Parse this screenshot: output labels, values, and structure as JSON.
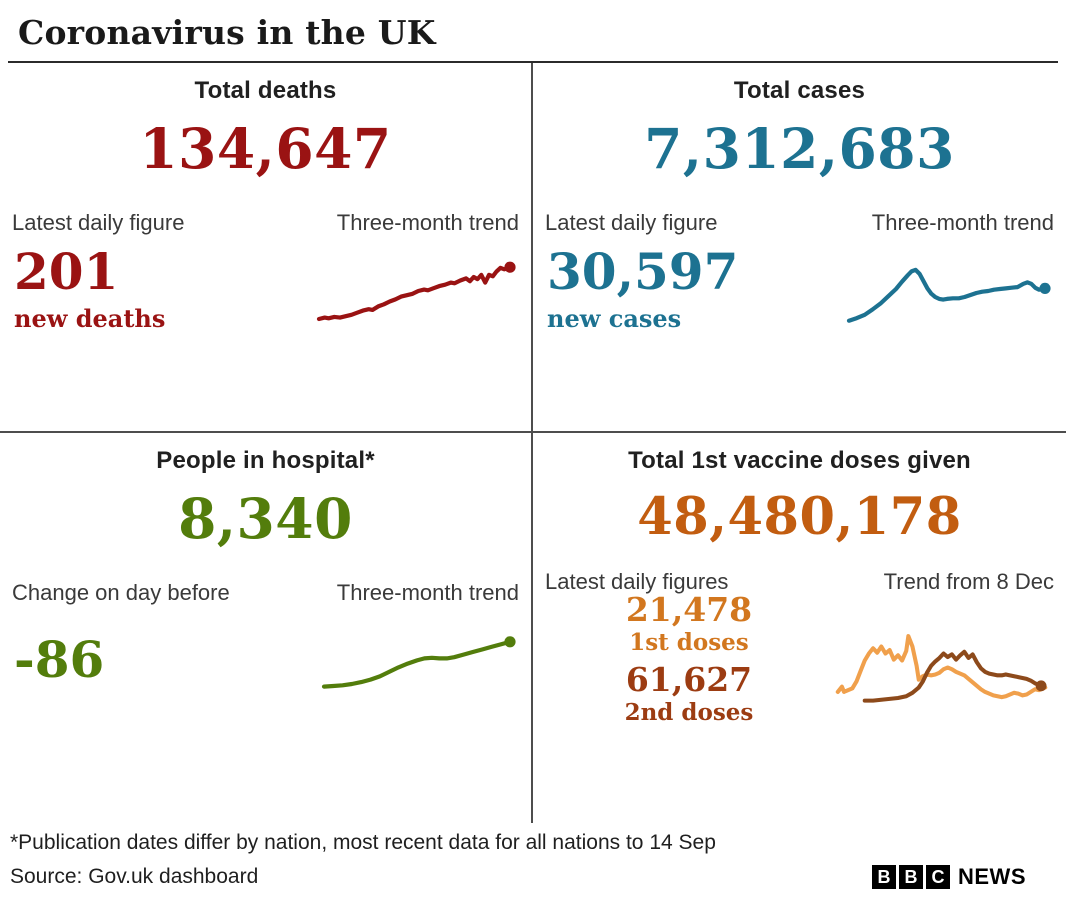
{
  "header": {
    "title": "Coronavirus in the UK"
  },
  "panels": {
    "deaths": {
      "title": "Total deaths",
      "total": "134,647",
      "left_label": "Latest daily figure",
      "right_label": "Three-month trend",
      "daily_value": "201",
      "daily_caption": "new deaths",
      "color": "#9a1313"
    },
    "cases": {
      "title": "Total cases",
      "total": "7,312,683",
      "left_label": "Latest daily figure",
      "right_label": "Three-month trend",
      "daily_value": "30,597",
      "daily_caption": "new cases",
      "color": "#1d7291"
    },
    "hospital": {
      "title": "People in hospital*",
      "total": "8,340",
      "left_label": "Change on day before",
      "right_label": "Three-month trend",
      "daily_value": "-86",
      "color": "#537d0c"
    },
    "vaccines": {
      "title": "Total 1st vaccine doses given",
      "total": "48,480,178",
      "left_label": "Latest daily figures",
      "right_label": "Trend from 8 Dec",
      "first_doses_value": "21,478",
      "first_doses_caption": "1st doses",
      "second_doses_value": "61,627",
      "second_doses_caption": "2nd doses",
      "total_color": "#c25d10",
      "first_color": "#d2771f",
      "second_color": "#9c3c12"
    }
  },
  "footer": {
    "footnote": "*Publication dates differ by nation, most recent data for all nations to 14 Sep",
    "source": "Source: Gov.uk dashboard",
    "logo_letters": [
      "B",
      "B",
      "C"
    ],
    "logo_text": "NEWS"
  },
  "chart_data": [
    {
      "name": "deaths-three-month-trend",
      "type": "line",
      "title": "Three-month trend",
      "note": "unlabeled sparkline; values are relative 0-100, rising steadily over three months with a sharp notch near the end and an end dot",
      "series": [
        {
          "name": "new deaths",
          "color": "#9a1313",
          "end_dot": true,
          "points": [
            [
              0,
              10
            ],
            [
              3,
              12
            ],
            [
              5,
              11
            ],
            [
              8,
              13
            ],
            [
              11,
              12
            ],
            [
              14,
              14
            ],
            [
              17,
              16
            ],
            [
              20,
              19
            ],
            [
              23,
              22
            ],
            [
              26,
              24
            ],
            [
              28,
              23
            ],
            [
              31,
              28
            ],
            [
              34,
              31
            ],
            [
              37,
              35
            ],
            [
              40,
              38
            ],
            [
              43,
              42
            ],
            [
              46,
              44
            ],
            [
              49,
              46
            ],
            [
              52,
              50
            ],
            [
              55,
              52
            ],
            [
              57,
              51
            ],
            [
              60,
              54
            ],
            [
              63,
              57
            ],
            [
              66,
              59
            ],
            [
              69,
              62
            ],
            [
              71,
              61
            ],
            [
              74,
              65
            ],
            [
              77,
              68
            ],
            [
              79,
              64
            ],
            [
              81,
              70
            ],
            [
              83,
              67
            ],
            [
              85,
              73
            ],
            [
              87,
              62
            ],
            [
              89,
              73
            ],
            [
              91,
              71
            ],
            [
              93,
              78
            ],
            [
              95,
              83
            ],
            [
              97,
              81
            ],
            [
              100,
              84
            ]
          ]
        }
      ]
    },
    {
      "name": "cases-three-month-trend",
      "type": "line",
      "title": "Three-month trend",
      "note": "unlabeled sparkline; steep rise to a peak about a third in, decline to a trough, then a gentle rise with a small hump before the end dot",
      "series": [
        {
          "name": "new cases",
          "color": "#1d7291",
          "end_dot": true,
          "points": [
            [
              0,
              8
            ],
            [
              4,
              12
            ],
            [
              8,
              17
            ],
            [
              12,
              25
            ],
            [
              16,
              34
            ],
            [
              20,
              45
            ],
            [
              24,
              56
            ],
            [
              27,
              67
            ],
            [
              30,
              77
            ],
            [
              32,
              83
            ],
            [
              34,
              85
            ],
            [
              36,
              79
            ],
            [
              38,
              68
            ],
            [
              40,
              57
            ],
            [
              42,
              49
            ],
            [
              44,
              44
            ],
            [
              46,
              41
            ],
            [
              48,
              40
            ],
            [
              50,
              41
            ],
            [
              53,
              42
            ],
            [
              56,
              42
            ],
            [
              59,
              44
            ],
            [
              62,
              47
            ],
            [
              65,
              50
            ],
            [
              68,
              52
            ],
            [
              71,
              53
            ],
            [
              74,
              55
            ],
            [
              77,
              56
            ],
            [
              80,
              57
            ],
            [
              83,
              58
            ],
            [
              86,
              59
            ],
            [
              89,
              64
            ],
            [
              91,
              66
            ],
            [
              93,
              64
            ],
            [
              95,
              58
            ],
            [
              97,
              55
            ],
            [
              100,
              57
            ]
          ]
        }
      ]
    },
    {
      "name": "hospital-three-month-trend",
      "type": "line",
      "title": "Three-month trend",
      "note": "unlabeled sparkline; smooth rise with a mid plateau then continued rise to an end dot",
      "series": [
        {
          "name": "people in hospital",
          "color": "#537d0c",
          "end_dot": true,
          "points": [
            [
              0,
              10
            ],
            [
              5,
              11
            ],
            [
              10,
              12
            ],
            [
              15,
              14
            ],
            [
              20,
              17
            ],
            [
              25,
              21
            ],
            [
              30,
              26
            ],
            [
              35,
              33
            ],
            [
              40,
              40
            ],
            [
              45,
              46
            ],
            [
              50,
              51
            ],
            [
              54,
              54
            ],
            [
              58,
              55
            ],
            [
              62,
              54
            ],
            [
              66,
              54
            ],
            [
              70,
              56
            ],
            [
              75,
              60
            ],
            [
              80,
              64
            ],
            [
              85,
              68
            ],
            [
              90,
              72
            ],
            [
              95,
              76
            ],
            [
              100,
              80
            ]
          ]
        }
      ]
    },
    {
      "name": "vaccine-doses-trend-from-8-dec",
      "type": "line",
      "title": "Trend from 8 Dec",
      "note": "unlabeled two-series sparkline; 1st doses (light orange) peak early then decline; 2nd doses (brown) rise later, peak mid, then decline with end dot",
      "series": [
        {
          "name": "1st doses",
          "color": "#f0a04c",
          "end_dot": false,
          "points": [
            [
              0,
              18
            ],
            [
              2,
              24
            ],
            [
              3,
              18
            ],
            [
              5,
              20
            ],
            [
              7,
              22
            ],
            [
              9,
              30
            ],
            [
              11,
              42
            ],
            [
              13,
              54
            ],
            [
              15,
              62
            ],
            [
              17,
              68
            ],
            [
              19,
              63
            ],
            [
              21,
              70
            ],
            [
              23,
              62
            ],
            [
              25,
              66
            ],
            [
              27,
              55
            ],
            [
              29,
              60
            ],
            [
              31,
              54
            ],
            [
              33,
              65
            ],
            [
              34,
              82
            ],
            [
              36,
              70
            ],
            [
              38,
              48
            ],
            [
              39,
              32
            ],
            [
              41,
              36
            ],
            [
              43,
              38
            ],
            [
              45,
              37
            ],
            [
              47,
              38
            ],
            [
              49,
              40
            ],
            [
              51,
              44
            ],
            [
              53,
              46
            ],
            [
              55,
              44
            ],
            [
              57,
              41
            ],
            [
              59,
              39
            ],
            [
              61,
              37
            ],
            [
              63,
              33
            ],
            [
              65,
              29
            ],
            [
              67,
              25
            ],
            [
              69,
              21
            ],
            [
              71,
              18
            ],
            [
              73,
              16
            ],
            [
              75,
              14
            ],
            [
              77,
              13
            ],
            [
              79,
              12
            ],
            [
              81,
              13
            ],
            [
              83,
              15
            ],
            [
              85,
              17
            ],
            [
              87,
              16
            ],
            [
              89,
              14
            ],
            [
              91,
              15
            ],
            [
              93,
              18
            ],
            [
              95,
              21
            ],
            [
              97,
              20
            ],
            [
              100,
              23
            ]
          ]
        },
        {
          "name": "2nd doses",
          "color": "#8d4a1b",
          "end_dot": true,
          "points": [
            [
              13,
              8
            ],
            [
              17,
              8
            ],
            [
              21,
              9
            ],
            [
              25,
              10
            ],
            [
              29,
              11
            ],
            [
              33,
              13
            ],
            [
              36,
              17
            ],
            [
              39,
              23
            ],
            [
              41,
              30
            ],
            [
              43,
              40
            ],
            [
              45,
              48
            ],
            [
              47,
              53
            ],
            [
              49,
              57
            ],
            [
              51,
              62
            ],
            [
              53,
              58
            ],
            [
              55,
              61
            ],
            [
              57,
              55
            ],
            [
              59,
              60
            ],
            [
              61,
              64
            ],
            [
              63,
              57
            ],
            [
              65,
              61
            ],
            [
              67,
              52
            ],
            [
              69,
              45
            ],
            [
              71,
              41
            ],
            [
              73,
              39
            ],
            [
              75,
              38
            ],
            [
              77,
              37
            ],
            [
              79,
              37
            ],
            [
              81,
              38
            ],
            [
              83,
              37
            ],
            [
              85,
              36
            ],
            [
              87,
              35
            ],
            [
              89,
              34
            ],
            [
              91,
              33
            ],
            [
              93,
              31
            ],
            [
              95,
              28
            ],
            [
              97,
              26
            ],
            [
              98,
              25
            ]
          ]
        }
      ]
    }
  ]
}
